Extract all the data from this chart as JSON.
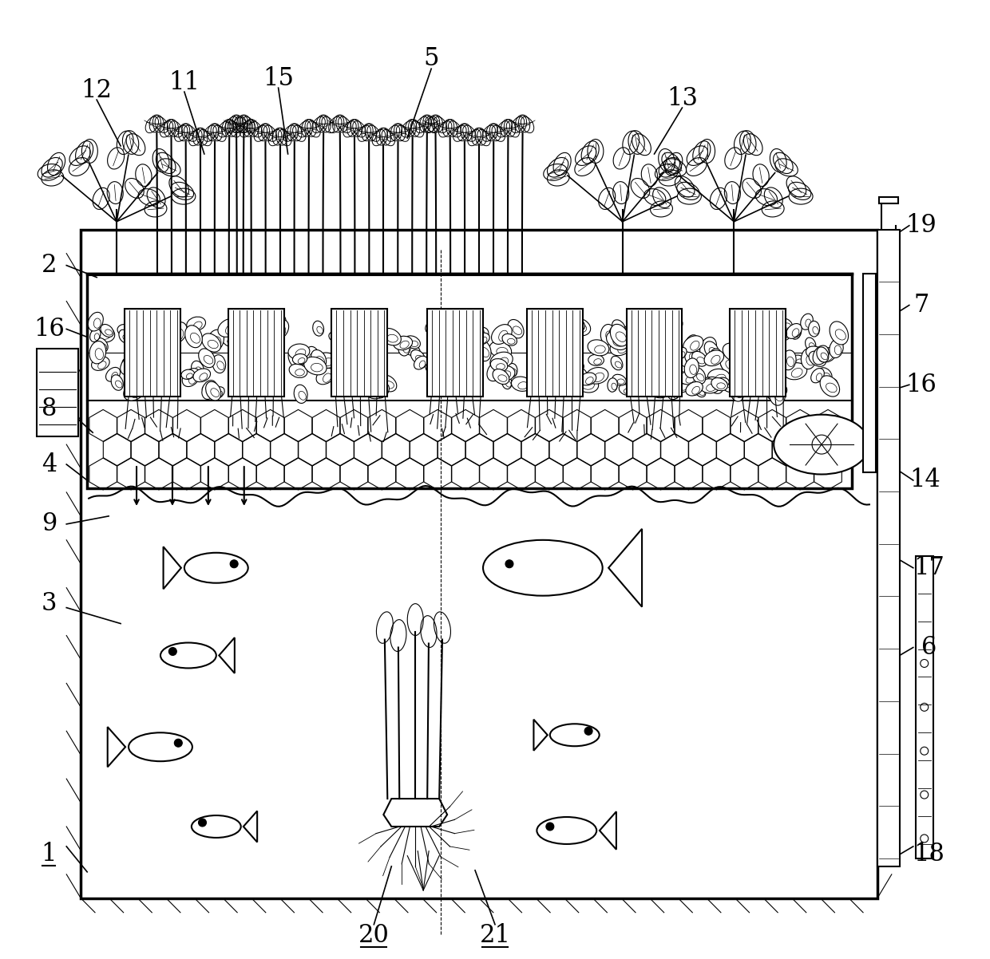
{
  "bg_color": "#ffffff",
  "line_color": "#000000",
  "lw": 1.5,
  "lw_thick": 2.5,
  "lw_thin": 0.8,
  "fig_width": 12.4,
  "fig_height": 12.02
}
